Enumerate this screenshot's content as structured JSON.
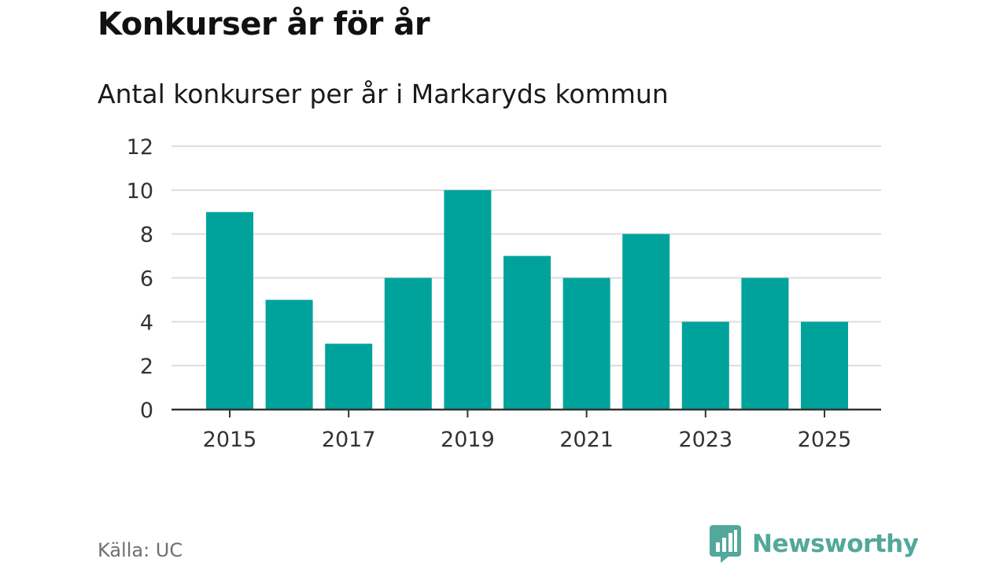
{
  "header": {
    "title": "Konkurser år för år",
    "subtitle": "Antal konkurser per år i Markaryds kommun"
  },
  "footer": {
    "source": "Källa: UC",
    "brand": "Newsworthy"
  },
  "colors": {
    "bar": "#00a39b",
    "grid": "#dddddd",
    "axis": "#333333",
    "brand": "#52a89a"
  },
  "icons": {
    "brand": "newsworthy-logo-icon"
  },
  "chart_data": {
    "type": "bar",
    "title": "Konkurser år för år",
    "subtitle": "Antal konkurser per år i Markaryds kommun",
    "xlabel": "",
    "ylabel": "",
    "categories": [
      "2015",
      "2016",
      "2017",
      "2018",
      "2019",
      "2020",
      "2021",
      "2022",
      "2023",
      "2024",
      "2025"
    ],
    "values": [
      9,
      5,
      3,
      6,
      10,
      7,
      6,
      8,
      4,
      6,
      4
    ],
    "x_tick_labels": [
      "2015",
      "2017",
      "2019",
      "2021",
      "2023",
      "2025"
    ],
    "y_ticks": [
      0,
      2,
      4,
      6,
      8,
      10,
      12
    ],
    "ylim": [
      0,
      12
    ],
    "grid": true,
    "legend": "none"
  }
}
